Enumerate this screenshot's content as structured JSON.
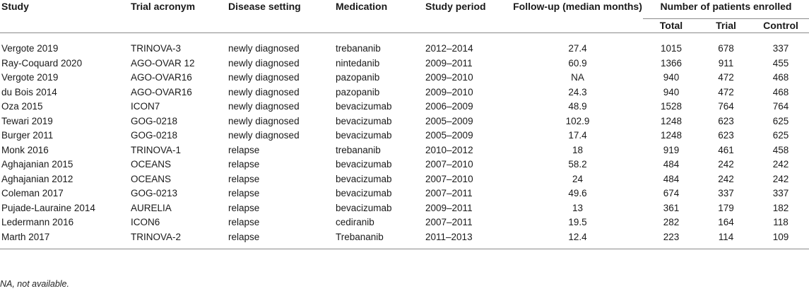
{
  "table": {
    "headers": {
      "study": "Study",
      "trial_acronym": "Trial acronym",
      "disease_setting": "Disease setting",
      "medication": "Medication",
      "study_period": "Study period",
      "follow_up": "Follow-up (median months)",
      "enrolled_group": "Number of patients enrolled",
      "total": "Total",
      "trial": "Trial",
      "control": "Control"
    },
    "rows": [
      [
        "Vergote 2019",
        "TRINOVA-3",
        "newly diagnosed",
        "trebananib",
        "2012–2014",
        "27.4",
        "1015",
        "678",
        "337"
      ],
      [
        "Ray-Coquard 2020",
        "AGO-OVAR 12",
        "newly diagnosed",
        "nintedanib",
        "2009–2011",
        "60.9",
        "1366",
        "911",
        "455"
      ],
      [
        "Vergote 2019",
        "AGO-OVAR16",
        "newly diagnosed",
        "pazopanib",
        "2009–2010",
        "NA",
        "940",
        "472",
        "468"
      ],
      [
        "du Bois 2014",
        "AGO-OVAR16",
        "newly diagnosed",
        "pazopanib",
        "2009–2010",
        "24.3",
        "940",
        "472",
        "468"
      ],
      [
        "Oza 2015",
        "ICON7",
        "newly diagnosed",
        "bevacizumab",
        "2006–2009",
        "48.9",
        "1528",
        "764",
        "764"
      ],
      [
        "Tewari 2019",
        "GOG-0218",
        "newly diagnosed",
        "bevacizumab",
        "2005–2009",
        "102.9",
        "1248",
        "623",
        "625"
      ],
      [
        "Burger 2011",
        "GOG-0218",
        "newly diagnosed",
        "bevacizumab",
        "2005–2009",
        "17.4",
        "1248",
        "623",
        "625"
      ],
      [
        "Monk 2016",
        "TRINOVA-1",
        "relapse",
        "trebananib",
        "2010–2012",
        "18",
        "919",
        "461",
        "458"
      ],
      [
        "Aghajanian 2015",
        "OCEANS",
        "relapse",
        "bevacizumab",
        "2007–2010",
        "58.2",
        "484",
        "242",
        "242"
      ],
      [
        "Aghajanian 2012",
        "OCEANS",
        "relapse",
        "bevacizumab",
        "2007–2010",
        "24",
        "484",
        "242",
        "242"
      ],
      [
        "Coleman 2017",
        "GOG-0213",
        "relapse",
        "bevacizumab",
        "2007–2011",
        "49.6",
        "674",
        "337",
        "337"
      ],
      [
        "Pujade-Lauraine 2014",
        "AURELIA",
        "relapse",
        "bevacizumab",
        "2009–2011",
        "13",
        "361",
        "179",
        "182"
      ],
      [
        "Ledermann 2016",
        "ICON6",
        "relapse",
        "cediranib",
        "2007–2011",
        "19.5",
        "282",
        "164",
        "118"
      ],
      [
        "Marth 2017",
        "TRINOVA-2",
        "relapse",
        "Trebananib",
        "2011–2013",
        "12.4",
        "223",
        "114",
        "109"
      ]
    ]
  },
  "footnote": "NA, not available."
}
